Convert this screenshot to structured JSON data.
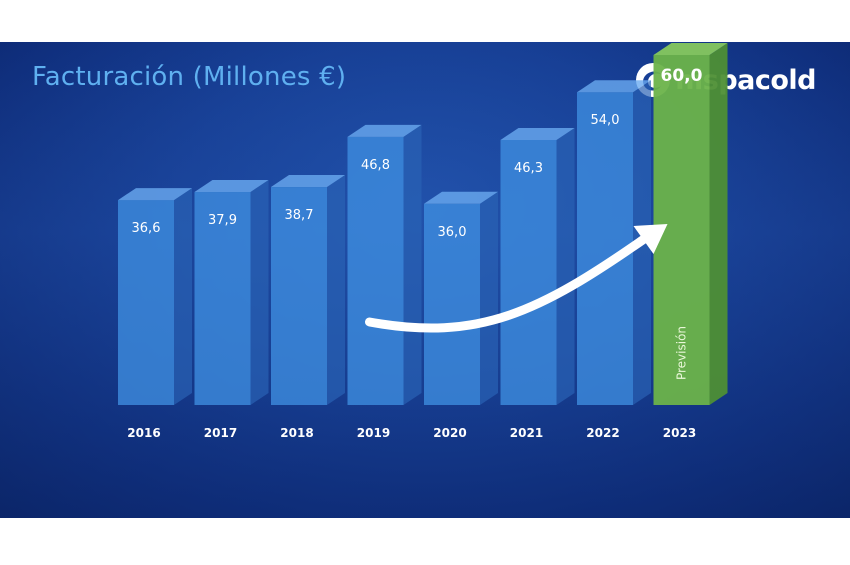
{
  "brand": {
    "name": "hispacold",
    "logo_icon": "hispacold-swirl-icon"
  },
  "colors": {
    "bar_face": "#3f8ee0",
    "bar_top": "#6aaaf0",
    "bar_side": "#2a62b5",
    "forecast_face": "#6cb34a",
    "forecast_top": "#86c85e",
    "forecast_side": "#4e8f35",
    "title": "#5fb0f0",
    "arrow": "#ffffff"
  },
  "chart_data": {
    "type": "bar",
    "title": "Facturación (Millones €)",
    "categories": [
      "2016",
      "2017",
      "2018",
      "2019",
      "2020",
      "2021",
      "2022",
      "2023"
    ],
    "values": [
      36.6,
      37.9,
      38.7,
      46.8,
      36.0,
      46.3,
      54.0,
      60.0
    ],
    "value_labels": [
      "36,6",
      "37,9",
      "38,7",
      "46,8",
      "36,0",
      "46,3",
      "54,0",
      "60,0"
    ],
    "forecast_index": 7,
    "forecast_label": "Previsión",
    "trend_arrow": true,
    "grid": false,
    "legend": "none"
  }
}
